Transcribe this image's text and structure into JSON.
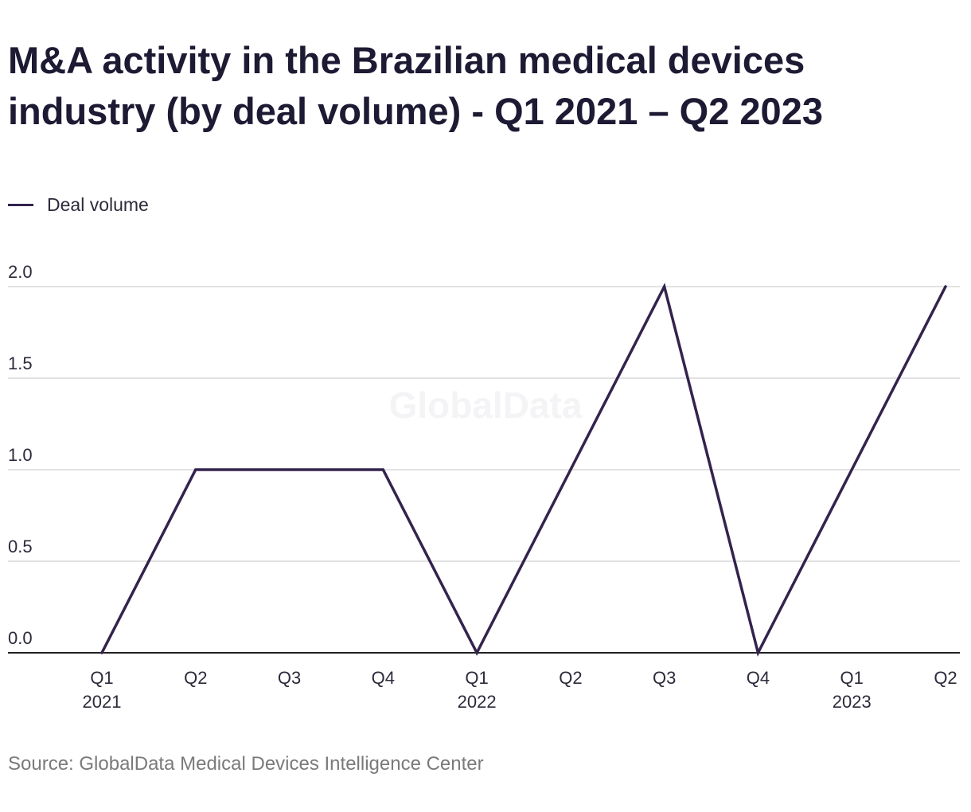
{
  "chart_data": {
    "type": "line",
    "title": "M&A activity in the Brazilian medical devices industry (by deal volume) - Q1 2021 – Q2 2023",
    "categories": [
      "Q1",
      "Q2",
      "Q3",
      "Q4",
      "Q1",
      "Q2",
      "Q3",
      "Q4",
      "Q1",
      "Q2"
    ],
    "year_labels": [
      "2021",
      "",
      "",
      "",
      "2022",
      "",
      "",
      "",
      "2023",
      ""
    ],
    "series": [
      {
        "name": "Deal volume",
        "values": [
          0,
          1,
          1,
          1,
          0,
          1,
          2,
          0,
          1,
          2
        ],
        "color": "#33234d"
      }
    ],
    "yticks": [
      "0.0",
      "0.5",
      "1.0",
      "1.5",
      "2.0"
    ],
    "ylim": [
      0,
      2
    ],
    "xlabel": "",
    "ylabel": "",
    "grid": true,
    "legend_position": "top-left",
    "watermark": "GlobalData"
  },
  "source": "Source: GlobalData Medical Devices Intelligence Center",
  "colors": {
    "line": "#33234d",
    "grid": "#d9d9d9",
    "axis": "#222222",
    "text": "#1d1a33"
  }
}
